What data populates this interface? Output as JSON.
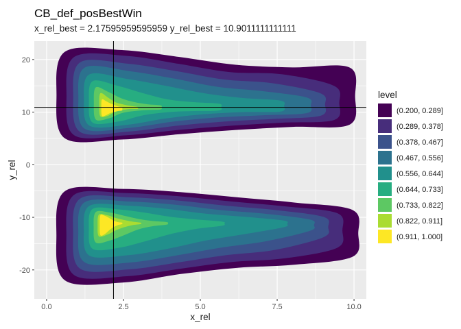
{
  "chart_data": {
    "type": "contour",
    "title": "CB_def_posBestWin",
    "subtitle": "x_rel_best = 2.17595959595959 y_rel_best = 10.9011111111111",
    "xlabel": "x_rel",
    "ylabel": "y_rel",
    "xlim": [
      -0.4,
      10.4
    ],
    "ylim": [
      -25.5,
      23.5
    ],
    "x_ticks": [
      0.0,
      2.5,
      5.0,
      7.5,
      10.0
    ],
    "x_tick_labels": [
      "0.0",
      "2.5",
      "5.0",
      "7.5",
      "10.0"
    ],
    "y_ticks": [
      -20,
      -10,
      0,
      10,
      20
    ],
    "y_tick_labels": [
      "-20",
      "-10",
      "0",
      "10",
      "20"
    ],
    "best_point": {
      "x": 2.17595959595959,
      "y": 10.9011111111111
    },
    "legend": {
      "title": "level",
      "placement": "right",
      "levels": [
        {
          "label": "(0.200, 0.289]",
          "color": "#440154"
        },
        {
          "label": "(0.289, 0.378]",
          "color": "#472D7B"
        },
        {
          "label": "(0.378, 0.467]",
          "color": "#3B528B"
        },
        {
          "label": "(0.467, 0.556]",
          "color": "#2C728E"
        },
        {
          "label": "(0.556, 0.644]",
          "color": "#21908C"
        },
        {
          "label": "(0.644, 0.733]",
          "color": "#27AD81"
        },
        {
          "label": "(0.733, 0.822]",
          "color": "#5DC863"
        },
        {
          "label": "(0.822, 0.911]",
          "color": "#AADC32"
        },
        {
          "label": "(0.911, 1.000]",
          "color": "#FDE725"
        }
      ]
    },
    "clusters": [
      {
        "name": "upper",
        "center": [
          2.2,
          10.9
        ],
        "bands": [
          {
            "level": 0,
            "x": [
              0.6,
              9.85
            ],
            "y_top": [
              21.5,
              21.8,
              20.5,
              19.0,
              18.5,
              18.5
            ],
            "y_bottom": [
              5.0,
              4.8,
              5.8,
              6.6,
              7.2,
              7.6
            ]
          },
          {
            "level": 1,
            "x": [
              0.9,
              9.35
            ],
            "y_top": [
              20.5,
              20.7,
              19.2,
              17.6,
              17.2,
              15.0
            ],
            "y_bottom": [
              5.6,
              5.6,
              6.6,
              7.4,
              8.0,
              8.5
            ]
          },
          {
            "level": 2,
            "x": [
              1.1,
              8.9
            ],
            "y_top": [
              19.5,
              19.2,
              17.8,
              16.2,
              15.5,
              13.6
            ],
            "y_bottom": [
              6.2,
              6.3,
              7.4,
              8.2,
              8.7,
              9.3
            ]
          },
          {
            "level": 3,
            "x": [
              1.25,
              8.45
            ],
            "y_top": [
              18.5,
              17.8,
              16.4,
              14.8,
              14.0,
              12.8
            ],
            "y_bottom": [
              6.8,
              7.0,
              8.2,
              9.0,
              9.4,
              9.8
            ]
          },
          {
            "level": 4,
            "x": [
              1.4,
              7.6
            ],
            "y_top": [
              17.2,
              16.3,
              15.0,
              13.6,
              12.7,
              12.2
            ],
            "y_bottom": [
              7.4,
              7.6,
              8.8,
              9.6,
              10.0,
              10.1
            ]
          },
          {
            "level": 5,
            "x": [
              1.5,
              5.6
            ],
            "y_top": [
              15.9,
              15.0,
              13.6,
              12.4,
              11.9,
              11.6
            ],
            "y_bottom": [
              8.0,
              8.2,
              9.4,
              10.0,
              10.2,
              10.3
            ]
          },
          {
            "level": 6,
            "x": [
              1.6,
              3.7
            ],
            "y_top": [
              14.7,
              13.8,
              12.6,
              11.9,
              11.5,
              11.3
            ],
            "y_bottom": [
              8.6,
              8.8,
              9.8,
              10.2,
              10.4,
              10.5
            ]
          },
          {
            "level": 7,
            "x": [
              1.75,
              2.95
            ],
            "y_top": [
              13.6,
              12.8,
              11.9,
              11.5,
              11.2,
              11.0
            ],
            "y_bottom": [
              9.2,
              9.3,
              10.1,
              10.4,
              10.6,
              10.6
            ]
          },
          {
            "level": 8,
            "x": [
              1.8,
              2.45
            ],
            "y_top": [
              12.4,
              12.1,
              11.7,
              11.4,
              11.1,
              10.9
            ],
            "y_bottom": [
              9.3,
              9.4,
              9.8,
              10.0,
              10.2,
              10.3
            ]
          }
        ]
      },
      {
        "name": "lower",
        "center": [
          2.2,
          -11.0
        ],
        "bands": [
          {
            "level": 0,
            "x": [
              0.6,
              9.95
            ],
            "y_top": [
              -5.0,
              -4.6,
              -5.2,
              -6.2,
              -7.2,
              -8.6
            ],
            "y_bottom": [
              -22.0,
              -22.4,
              -20.8,
              -19.6,
              -19.0,
              -17.5
            ]
          },
          {
            "level": 1,
            "x": [
              0.9,
              9.45
            ],
            "y_top": [
              -5.7,
              -5.4,
              -6.0,
              -7.0,
              -7.9,
              -9.2
            ],
            "y_bottom": [
              -21.0,
              -21.2,
              -19.8,
              -18.5,
              -17.8,
              -15.8
            ]
          },
          {
            "level": 2,
            "x": [
              1.1,
              9.0
            ],
            "y_top": [
              -6.4,
              -6.2,
              -6.8,
              -7.8,
              -8.6,
              -9.9
            ],
            "y_bottom": [
              -19.8,
              -19.9,
              -18.6,
              -17.2,
              -16.2,
              -13.8
            ]
          },
          {
            "level": 3,
            "x": [
              1.25,
              8.55
            ],
            "y_top": [
              -7.1,
              -7.0,
              -7.6,
              -8.6,
              -9.3,
              -10.4
            ],
            "y_bottom": [
              -18.6,
              -18.6,
              -17.3,
              -15.8,
              -14.6,
              -12.6
            ]
          },
          {
            "level": 4,
            "x": [
              1.4,
              7.7
            ],
            "y_top": [
              -7.8,
              -7.8,
              -8.4,
              -9.3,
              -9.9,
              -10.6
            ],
            "y_bottom": [
              -17.3,
              -17.2,
              -16.0,
              -14.4,
              -13.2,
              -11.9
            ]
          },
          {
            "level": 5,
            "x": [
              1.5,
              5.7
            ],
            "y_top": [
              -8.4,
              -8.5,
              -9.1,
              -9.9,
              -10.4,
              -10.8
            ],
            "y_bottom": [
              -16.0,
              -15.8,
              -14.6,
              -13.2,
              -12.2,
              -11.6
            ]
          },
          {
            "level": 6,
            "x": [
              1.6,
              3.9
            ],
            "y_top": [
              -9.0,
              -9.1,
              -9.7,
              -10.3,
              -10.7,
              -10.9
            ],
            "y_bottom": [
              -14.8,
              -14.4,
              -13.4,
              -12.3,
              -11.7,
              -11.4
            ]
          },
          {
            "level": 7,
            "x": [
              1.7,
              3.05
            ],
            "y_top": [
              -9.5,
              -9.6,
              -10.1,
              -10.5,
              -10.8,
              -11.0
            ],
            "y_bottom": [
              -13.6,
              -13.3,
              -12.5,
              -11.9,
              -11.5,
              -11.3
            ]
          },
          {
            "level": 8,
            "x": [
              1.75,
              2.45
            ],
            "y_top": [
              -9.6,
              -9.7,
              -10.1,
              -10.6,
              -10.9,
              -11.0
            ],
            "y_bottom": [
              -13.4,
              -13.2,
              -12.5,
              -11.9,
              -11.5,
              -11.3
            ]
          }
        ]
      }
    ]
  }
}
